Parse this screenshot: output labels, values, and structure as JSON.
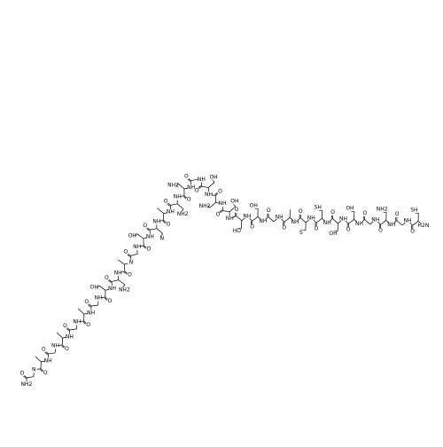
{
  "residues": [
    {
      "n": "H2N",
      "o": "O",
      "side": "SH"
    },
    {
      "n": "NH",
      "o": "O"
    },
    {
      "n": "NH",
      "o": "O",
      "side": "NH2"
    },
    {
      "n": "NH",
      "o": "O"
    },
    {
      "n": "NH",
      "o": "O",
      "side": "OH"
    },
    {
      "n": "NH",
      "o": "O",
      "side": "OH"
    },
    {
      "n": "NH",
      "o": "O",
      "side": "SH"
    },
    {
      "n": "NH",
      "o": "O",
      "side": "S"
    },
    {
      "n": "NH",
      "o": "O"
    },
    {
      "n": "NH",
      "o": "O"
    },
    {
      "n": "NH",
      "o": "O",
      "side": "OH"
    },
    {
      "n": "NH",
      "o": "O",
      "side": "HO"
    },
    {
      "n": "NH",
      "o": "O",
      "side": "OH"
    },
    {
      "n": "NH",
      "o": "O",
      "side": "NH2"
    },
    {
      "n": "NH",
      "o": "O",
      "side": "OH"
    },
    {
      "n": "NH",
      "o": "O"
    },
    {
      "n": "NH",
      "o": "O",
      "side": "NH2"
    },
    {
      "n": "NH",
      "o": "O",
      "side": "NH2"
    },
    {
      "n": "NH",
      "o": "O"
    },
    {
      "n": "NH",
      "o": "O",
      "side": "N"
    },
    {
      "n": "NH",
      "o": "O",
      "side": "OH"
    },
    {
      "n": "NH",
      "o": "O"
    },
    {
      "n": "N",
      "o": "O"
    },
    {
      "n": "NH",
      "o": "O",
      "side": "NH2"
    },
    {
      "n": "NH",
      "o": "O",
      "side": "OH"
    },
    {
      "n": "NH",
      "o": "O"
    },
    {
      "n": "NH",
      "o": "O"
    },
    {
      "n": "NH",
      "o": "O"
    },
    {
      "n": "NH",
      "o": "O"
    },
    {
      "n": "NH",
      "o": "O"
    },
    {
      "n": "NH",
      "o": "O"
    },
    {
      "n": "N",
      "o": "O"
    }
  ],
  "c_terminal": "NH2"
}
